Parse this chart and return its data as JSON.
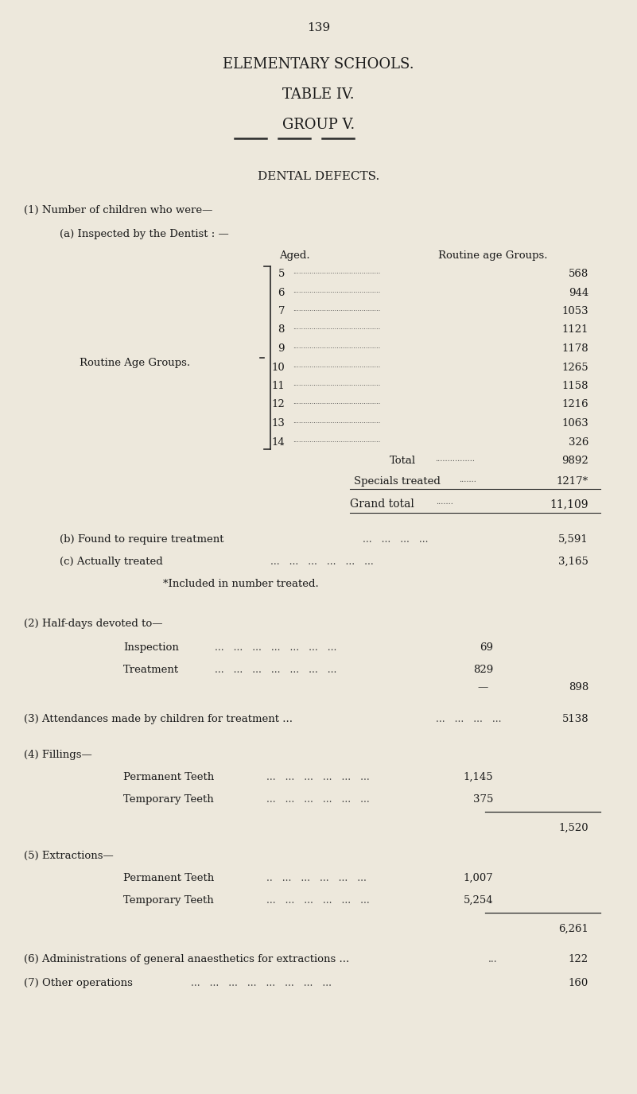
{
  "bg_color": "#ede8dc",
  "text_color": "#1a1a1a",
  "page_number": "139",
  "title1": "ELEMENTARY SCHOOLS.",
  "title2": "TABLE IV.",
  "title3": "GROUP V.",
  "section_title": "DENTAL DEFECTS.",
  "section1_header": "(1) Number of children who were—",
  "section1a_header": "(a) Inspected by the Dentist : —",
  "aged_label": "Aged.",
  "routine_label": "Routine age Groups.",
  "routine_side_label": "Routine Age Groups.",
  "ages": [
    "5",
    "6",
    "7",
    "8",
    "9",
    "10",
    "11",
    "12",
    "13",
    "14"
  ],
  "age_values": [
    "568",
    "944",
    "1053",
    "1121",
    "1178",
    "1265",
    "1158",
    "1216",
    "1063",
    "326"
  ],
  "total_label": "Total",
  "total_dots": "................",
  "total_value": "9892",
  "specials_label": "Specials treated",
  "specials_dots": ".......",
  "specials_value": "1217*",
  "grand_total_label": "Grand total",
  "grand_total_dots": ".......",
  "grand_total_value": "11,109",
  "section1b_label": "(b) Found to require treatment",
  "section1b_value": "5,591",
  "section1c_label": "(c) Actually treated",
  "section1c_value": "3,165",
  "footnote": "*Included in number treated.",
  "section2_header": "(2) Half-days devoted to—",
  "inspection_label": "Inspection",
  "inspection_value": "69",
  "treatment_label": "Treatment",
  "treatment_value": "829",
  "halfdays_total": "898",
  "section3_text": "(3) Attendances made by children for treatment ...",
  "section3_dots2": "...   ...   ...",
  "section3_value": "5138",
  "section4_header": "(4) Fillings—",
  "perm_teeth_label": "Permanent Teeth",
  "perm_teeth_value": "1,145",
  "temp_teeth_label": "Temporary Teeth",
  "temp_teeth_value": "375",
  "fillings_total": "1,520",
  "section5_header": "(5) Extractions—",
  "ext_perm_label": "Permanent Teeth",
  "ext_perm_value": "1,007",
  "ext_temp_label": "Temporary Teeth",
  "ext_temp_value": "5,254",
  "extractions_total": "6,261",
  "section6_text": "(6) Administrations of general anaesthetics for extractions ...",
  "section6_dots": "...",
  "section6_value": "122",
  "section7_label": "(7) Other operations",
  "section7_value": "160"
}
